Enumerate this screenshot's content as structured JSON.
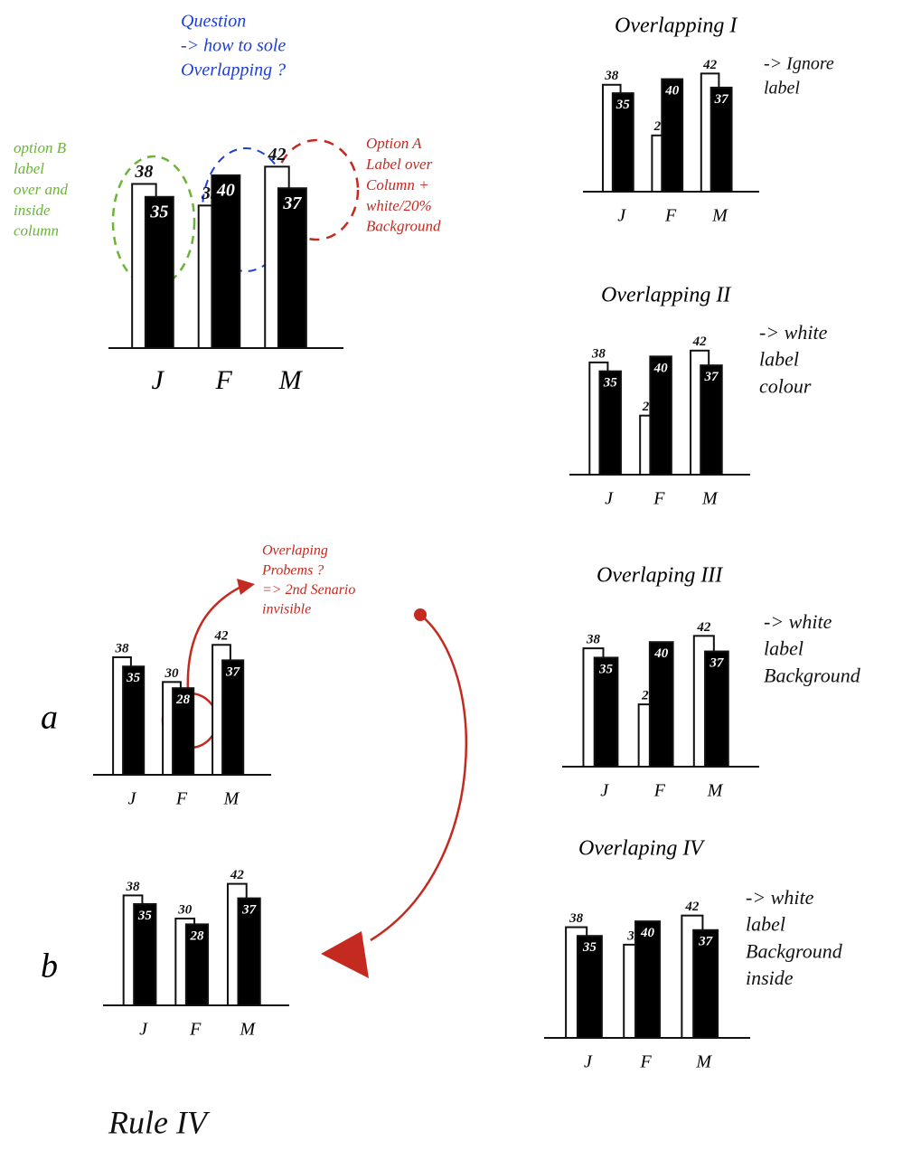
{
  "chart_data": [
    {
      "type": "bar",
      "categories": [
        "J",
        "F",
        "M"
      ],
      "series": [
        {
          "color": "#ffffff",
          "values": [
            38,
            33,
            42
          ]
        },
        {
          "color": "#000000",
          "values": [
            35,
            40,
            37
          ]
        }
      ],
      "ylim": [
        0,
        45
      ],
      "annotations": [
        {
          "color": "#1e3fd8",
          "lines": [
            "Question",
            "-> how to sole",
            "Overlapping ?"
          ]
        },
        {
          "color": "#6cb33a",
          "lines": [
            "option B",
            "label",
            "over and",
            "inside",
            "column"
          ]
        },
        {
          "color": "#c42a20",
          "lines": [
            "Option A",
            "Label over",
            "Column +",
            "white/20%",
            "Background"
          ]
        }
      ]
    },
    {
      "type": "bar",
      "title": "Overlapping I",
      "categories": [
        "J",
        "F",
        "M"
      ],
      "series": [
        {
          "color": "#ffffff",
          "values": [
            38,
            20,
            42
          ]
        },
        {
          "color": "#000000",
          "values": [
            35,
            40,
            37
          ]
        }
      ],
      "ylim": [
        0,
        45
      ],
      "annotations": [
        {
          "color": "#111111",
          "lines": [
            "-> Ignore",
            "label"
          ]
        }
      ]
    },
    {
      "type": "bar",
      "title": "Overlapping II",
      "categories": [
        "J",
        "F",
        "M"
      ],
      "series": [
        {
          "color": "#ffffff",
          "values": [
            38,
            20,
            42
          ]
        },
        {
          "color": "#000000",
          "values": [
            35,
            40,
            37
          ]
        }
      ],
      "ylim": [
        0,
        45
      ],
      "annotations": [
        {
          "color": "#111111",
          "lines": [
            "-> white",
            "label",
            "colour"
          ]
        }
      ]
    },
    {
      "type": "bar",
      "title": "Overlaping III",
      "categories": [
        "J",
        "F",
        "M"
      ],
      "series": [
        {
          "color": "#ffffff",
          "values": [
            38,
            20,
            42
          ]
        },
        {
          "color": "#000000",
          "values": [
            35,
            40,
            37
          ]
        }
      ],
      "ylim": [
        0,
        45
      ],
      "annotations": [
        {
          "color": "#111111",
          "lines": [
            "-> white",
            "label",
            "Background"
          ]
        }
      ]
    },
    {
      "type": "bar",
      "title": "Overlaping IV",
      "categories": [
        "J",
        "F",
        "M"
      ],
      "series": [
        {
          "color": "#ffffff",
          "values": [
            38,
            32,
            42
          ]
        },
        {
          "color": "#000000",
          "values": [
            35,
            40,
            37
          ]
        }
      ],
      "ylim": [
        0,
        45
      ],
      "annotations": [
        {
          "color": "#111111",
          "lines": [
            "-> white",
            "label",
            "Background",
            "inside"
          ]
        }
      ]
    },
    {
      "type": "bar",
      "title": "a",
      "categories": [
        "J",
        "F",
        "M"
      ],
      "series": [
        {
          "color": "#ffffff",
          "values": [
            38,
            30,
            42
          ]
        },
        {
          "color": "#000000",
          "values": [
            35,
            28,
            37
          ]
        }
      ],
      "ylim": [
        0,
        45
      ],
      "annotations": [
        {
          "color": "#c42a20",
          "lines": [
            "Overlaping",
            "Probems ?",
            "=> 2nd Senario",
            "invisible"
          ]
        }
      ]
    },
    {
      "type": "bar",
      "title": "b",
      "categories": [
        "J",
        "F",
        "M"
      ],
      "series": [
        {
          "color": "#ffffff",
          "values": [
            38,
            30,
            42
          ]
        },
        {
          "color": "#000000",
          "values": [
            35,
            28,
            37
          ]
        }
      ],
      "ylim": [
        0,
        45
      ],
      "annotations": [
        {
          "color": "#111111",
          "lines": [
            "Rule IV"
          ]
        }
      ]
    }
  ]
}
